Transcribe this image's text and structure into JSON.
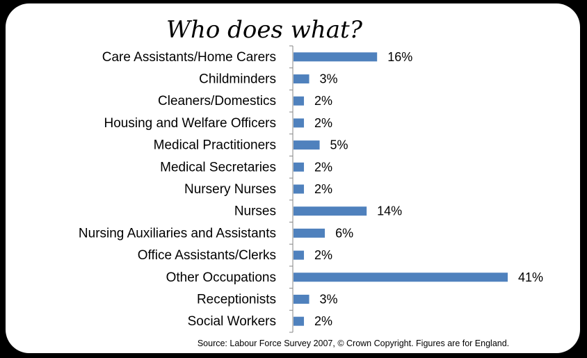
{
  "chart_data": {
    "type": "bar",
    "orientation": "horizontal",
    "title": "Who does what?",
    "categories": [
      "Care Assistants/Home Carers",
      "Childminders",
      "Cleaners/Domestics",
      "Housing and Welfare Officers",
      "Medical Practitioners",
      "Medical Secretaries",
      "Nursery Nurses",
      "Nurses",
      "Nursing Auxiliaries and Assistants",
      "Office Assistants/Clerks",
      "Other Occupations",
      "Receptionists",
      "Social Workers"
    ],
    "values": [
      16,
      3,
      2,
      2,
      5,
      2,
      2,
      14,
      6,
      2,
      41,
      3,
      2
    ],
    "value_labels": [
      "16%",
      "3%",
      "2%",
      "2%",
      "5%",
      "2%",
      "2%",
      "14%",
      "6%",
      "2%",
      "41%",
      "3%",
      "2%"
    ],
    "bar_color": "#4F81BD",
    "xlim": [
      0,
      41
    ],
    "grid": false,
    "legend": "none",
    "source": "Source: Labour Force    Survey 2007, © Crown Copyright. Figures are for England."
  }
}
